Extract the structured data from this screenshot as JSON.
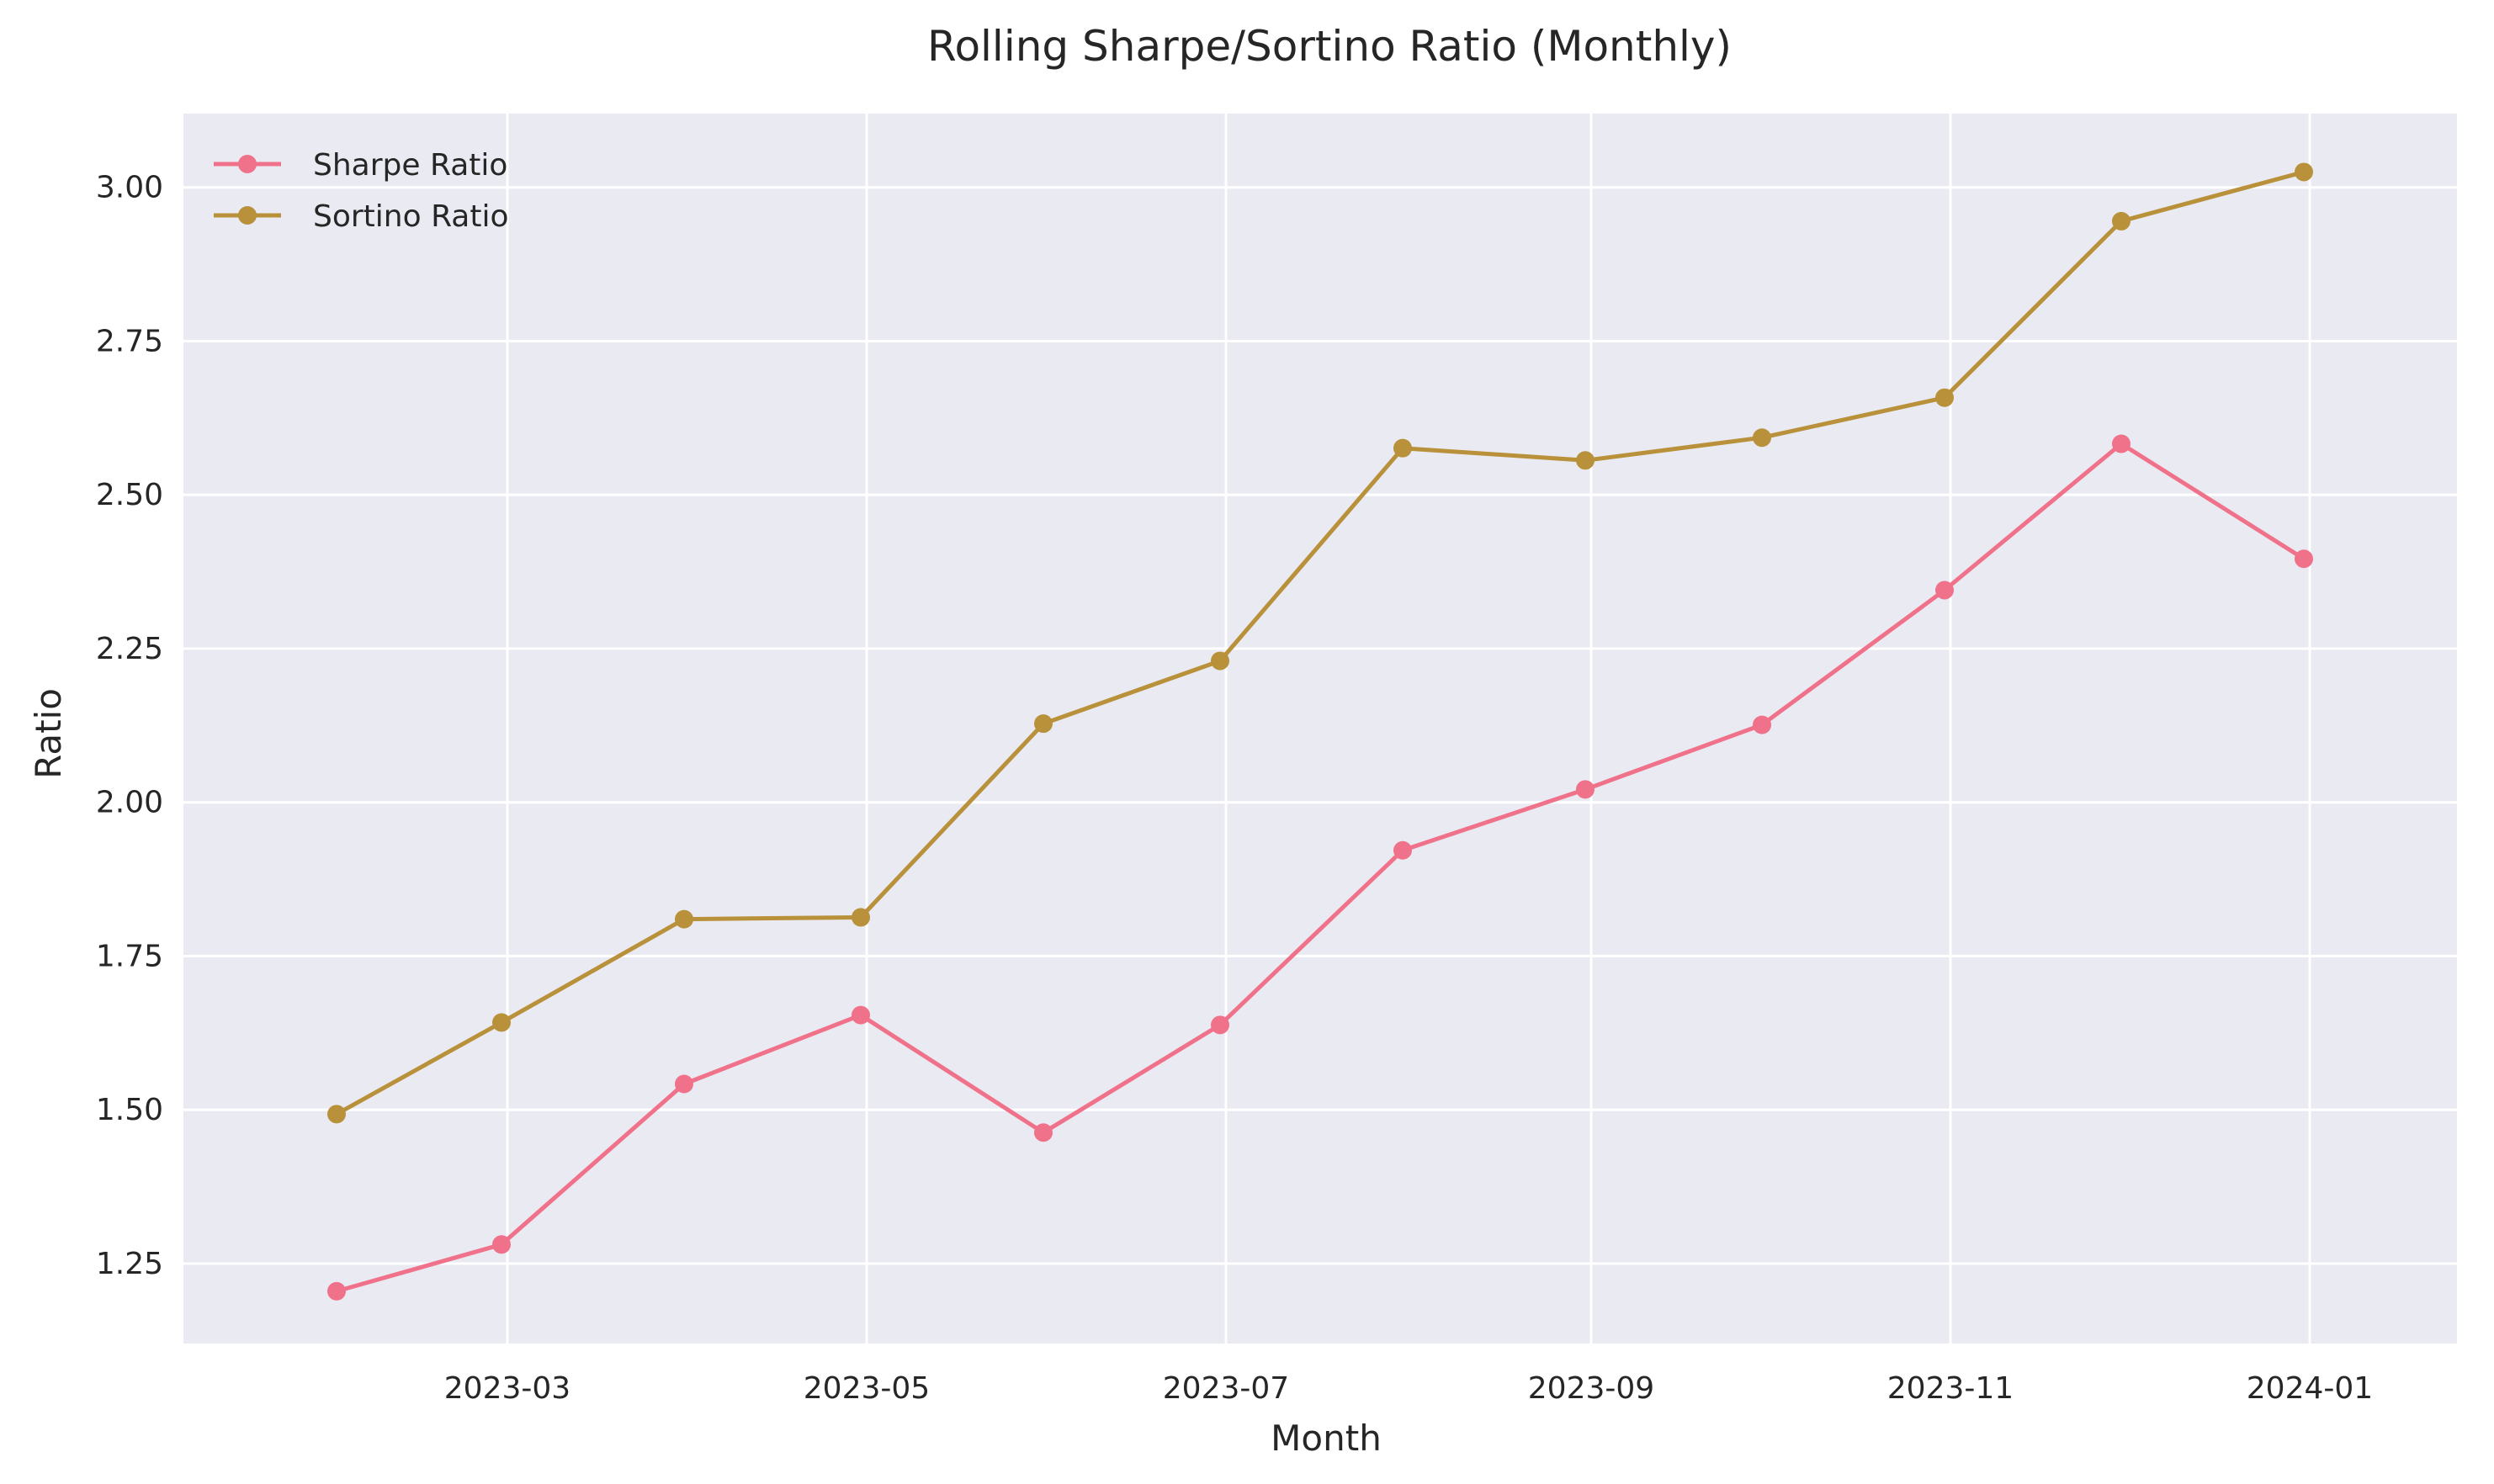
{
  "chart_data": {
    "type": "line",
    "title": "Rolling Sharpe/Sortino Ratio (Monthly)",
    "xlabel": "Month",
    "ylabel": "Ratio",
    "x": [
      "2023-01-31",
      "2023-02-28",
      "2023-03-31",
      "2023-04-30",
      "2023-05-31",
      "2023-06-30",
      "2023-07-31",
      "2023-08-31",
      "2023-09-30",
      "2023-10-31",
      "2023-11-30",
      "2023-12-31"
    ],
    "x_ticks": [
      "2023-03",
      "2023-05",
      "2023-07",
      "2023-09",
      "2023-11",
      "2024-01"
    ],
    "y_ticks": [
      "1.25",
      "1.50",
      "1.75",
      "2.00",
      "2.25",
      "2.50",
      "2.75",
      "3.00"
    ],
    "xlim": [
      "2023-01-05",
      "2024-01-26"
    ],
    "ylim": [
      1.12,
      3.12
    ],
    "grid": true,
    "legend_position": "top-left",
    "series": [
      {
        "name": "Sharpe Ratio",
        "color": "#f0718a",
        "values": [
          1.205,
          1.281,
          1.542,
          1.654,
          1.463,
          1.638,
          1.922,
          2.021,
          2.126,
          2.345,
          2.583,
          2.396
        ]
      },
      {
        "name": "Sortino Ratio",
        "color": "#b8913a",
        "values": [
          1.493,
          1.642,
          1.81,
          1.813,
          2.128,
          2.23,
          2.576,
          2.556,
          2.593,
          2.658,
          2.945,
          3.025
        ]
      }
    ]
  }
}
